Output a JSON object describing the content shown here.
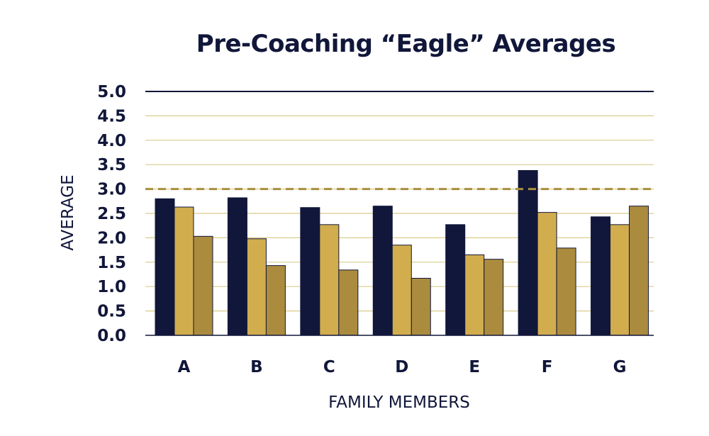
{
  "chart_data": {
    "type": "bar",
    "title": "Pre-Coaching “Eagle” Averages",
    "xlabel": "FAMILY MEMBERS",
    "ylabel": "AVERAGE",
    "categories": [
      "A",
      "B",
      "C",
      "D",
      "E",
      "F",
      "G"
    ],
    "series": [
      {
        "values": [
          2.8,
          2.82,
          2.62,
          2.65,
          2.27,
          3.38,
          2.43
        ]
      },
      {
        "values": [
          2.63,
          1.98,
          2.27,
          1.85,
          1.65,
          2.52,
          2.27
        ]
      },
      {
        "values": [
          2.03,
          1.43,
          1.34,
          1.17,
          1.56,
          1.79,
          2.65
        ]
      }
    ],
    "ylim": [
      0,
      5
    ],
    "yticks": [
      "0.0",
      "0.5",
      "1.0",
      "1.5",
      "2.0",
      "2.5",
      "3.0",
      "3.5",
      "4.0",
      "4.5",
      "5.0"
    ],
    "reference_line": 3.0,
    "grid": true,
    "colors": {
      "series": [
        "#11173a",
        "#d1ad4e",
        "#ab8b3e"
      ],
      "grid": "#d9cc8a",
      "top_line": "#11173a",
      "reference_line": "#a88f3e",
      "text": "#11173a"
    }
  }
}
